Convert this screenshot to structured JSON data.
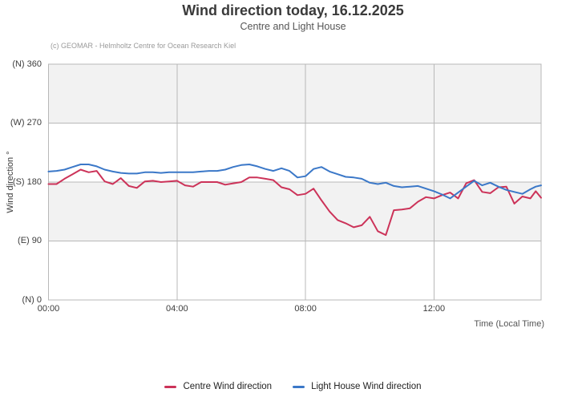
{
  "header": {
    "title": "Wind direction today, 16.12.2025",
    "subtitle": "Centre and Light House",
    "credits": "(c) GEOMAR - Helmholtz Centre for Ocean Research Kiel"
  },
  "colors": {
    "centre_line": "#cc3359",
    "lighthouse_line": "#3b78c8",
    "band_fill": "#f2f2f2",
    "gridline": "#b8b8b8",
    "plot_border": "#b8b8b8",
    "title_text": "#3a3a3a",
    "axis_text": "#3c3c3c",
    "credits_text": "#9a9a9a"
  },
  "chart_data": {
    "type": "line",
    "title": "Wind direction today, 16.12.2025",
    "subtitle": "Centre and Light House",
    "xlabel": "Time (Local Time)",
    "ylabel": "Wind direction °",
    "x_unit": "minutes since 00:00 local time",
    "xlim": [
      0,
      920
    ],
    "ylim": [
      0,
      360
    ],
    "grid": true,
    "legend_position": "bottom",
    "x_ticks": [
      {
        "minutes": 0,
        "label": "00:00"
      },
      {
        "minutes": 240,
        "label": "04:00"
      },
      {
        "minutes": 480,
        "label": "08:00"
      },
      {
        "minutes": 720,
        "label": "12:00"
      }
    ],
    "y_ticks": [
      {
        "value": 360,
        "label": "(N) 360"
      },
      {
        "value": 270,
        "label": "(W) 270"
      },
      {
        "value": 180,
        "label": "(S) 180"
      },
      {
        "value": 90,
        "label": "(E) 90"
      },
      {
        "value": 0,
        "label": "(N) 0"
      }
    ],
    "shaded_bands": [
      {
        "from": 270,
        "to": 360
      },
      {
        "from": 90,
        "to": 180
      }
    ],
    "x": [
      0,
      15,
      30,
      45,
      60,
      75,
      90,
      105,
      120,
      135,
      150,
      165,
      180,
      195,
      210,
      225,
      240,
      255,
      270,
      285,
      300,
      315,
      330,
      345,
      360,
      375,
      390,
      405,
      420,
      435,
      450,
      465,
      480,
      495,
      510,
      525,
      540,
      555,
      570,
      585,
      600,
      615,
      630,
      645,
      660,
      675,
      690,
      705,
      720,
      735,
      750,
      765,
      780,
      795,
      810,
      825,
      840,
      855,
      870,
      885,
      900,
      910,
      920
    ],
    "series": [
      {
        "name": "Centre Wind direction",
        "color": "#cc3359",
        "values": [
          177,
          177,
          185,
          192,
          199,
          195,
          197,
          181,
          177,
          186,
          174,
          171,
          181,
          182,
          180,
          181,
          182,
          175,
          173,
          180,
          180,
          180,
          176,
          178,
          180,
          187,
          187,
          185,
          183,
          172,
          169,
          160,
          162,
          170,
          152,
          135,
          122,
          117,
          111,
          114,
          127,
          105,
          99,
          137,
          138,
          140,
          150,
          157,
          155,
          160,
          164,
          155,
          178,
          183,
          165,
          163,
          172,
          173,
          147,
          158,
          155,
          166,
          156
        ]
      },
      {
        "name": "Light House Wind direction",
        "color": "#3b78c8",
        "values": [
          196,
          197,
          199,
          203,
          207,
          207,
          204,
          199,
          196,
          194,
          193,
          193,
          195,
          195,
          194,
          195,
          195,
          195,
          195,
          196,
          197,
          197,
          199,
          203,
          206,
          207,
          204,
          200,
          197,
          201,
          197,
          187,
          189,
          200,
          203,
          196,
          192,
          188,
          187,
          185,
          179,
          177,
          179,
          174,
          172,
          173,
          174,
          170,
          166,
          161,
          155,
          164,
          173,
          182,
          175,
          179,
          173,
          168,
          165,
          162,
          169,
          173,
          175
        ]
      }
    ]
  }
}
